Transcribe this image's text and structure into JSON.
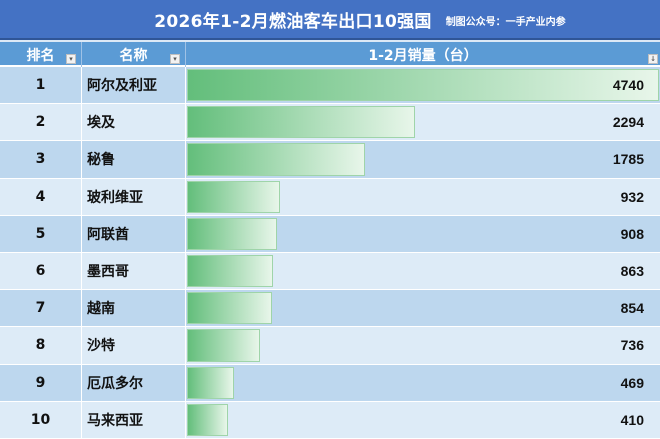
{
  "header": {
    "title": "2026年1-2月燃油客车出口10强国",
    "subtitle": "制图公众号：一手产业内参"
  },
  "table": {
    "columns": [
      "排名",
      "名称",
      "1-2月销量（台）"
    ],
    "filter_icon": "dropdown-arrow-icon",
    "sort_icon": "sort-desc-icon",
    "rows": [
      {
        "rank": "1",
        "name": "阿尔及利亚",
        "value": "4740"
      },
      {
        "rank": "2",
        "name": "埃及",
        "value": "2294"
      },
      {
        "rank": "3",
        "name": "秘鲁",
        "value": "1785"
      },
      {
        "rank": "4",
        "name": "玻利维亚",
        "value": "932"
      },
      {
        "rank": "5",
        "name": "阿联酋",
        "value": "908"
      },
      {
        "rank": "6",
        "name": "墨西哥",
        "value": "863"
      },
      {
        "rank": "7",
        "name": "越南",
        "value": "854"
      },
      {
        "rank": "8",
        "name": "沙特",
        "value": "736"
      },
      {
        "rank": "9",
        "name": "厄瓜多尔",
        "value": "469"
      },
      {
        "rank": "10",
        "name": "马来西亚",
        "value": "410"
      }
    ]
  },
  "colors": {
    "title_bg": "#4472c4",
    "header_bg": "#5b9bd5",
    "row_odd": "#bdd7ee",
    "row_even": "#ddebf7",
    "bar_start": "#63be7b",
    "bar_end": "#e8f6ea"
  },
  "chart_data": {
    "type": "bar",
    "orientation": "horizontal",
    "title": "2026年1-2月燃油客车出口10强国",
    "subtitle": "制图公众号：一手产业内参",
    "xlabel": "1-2月销量（台）",
    "ylabel": "名称",
    "categories": [
      "阿尔及利亚",
      "埃及",
      "秘鲁",
      "玻利维亚",
      "阿联酋",
      "墨西哥",
      "越南",
      "沙特",
      "厄瓜多尔",
      "马来西亚"
    ],
    "values": [
      4740,
      2294,
      1785,
      932,
      908,
      863,
      854,
      736,
      469,
      410
    ],
    "xlim": [
      0,
      4740
    ],
    "grid": false,
    "legend": null
  }
}
